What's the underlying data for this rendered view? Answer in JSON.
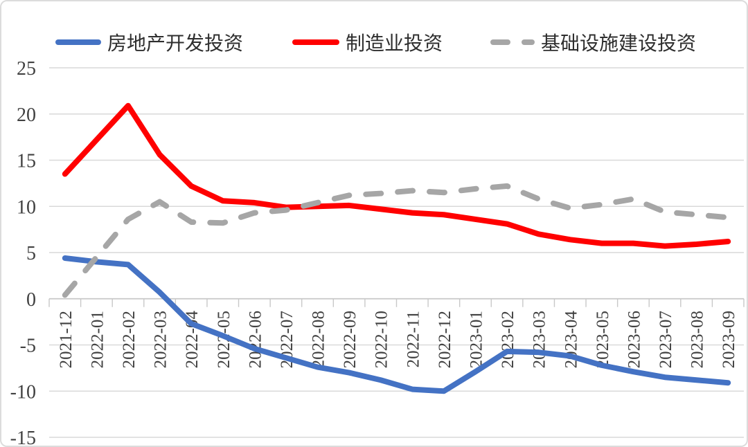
{
  "chart_data": {
    "type": "line",
    "title": "",
    "xlabel": "",
    "ylabel": "",
    "ylim": [
      -15,
      25
    ],
    "yticks": [
      25,
      20,
      15,
      10,
      5,
      0,
      -5,
      -10,
      -15
    ],
    "grid": "horizontal",
    "legend_position": "top",
    "colors": {
      "grid": "#d9d9d9",
      "axis": "#c8c8c8",
      "tick_label": "#404040",
      "legend_text": "#2e2e2e"
    },
    "categories": [
      "2021-12",
      "2022-01",
      "2022-02",
      "2022-03",
      "2022-04",
      "2022-05",
      "2022-06",
      "2022-07",
      "2022-08",
      "2022-09",
      "2022-10",
      "2022-11",
      "2022-12",
      "2023-01",
      "2023-02",
      "2023-03",
      "2023-04",
      "2023-05",
      "2023-06",
      "2023-07",
      "2023-08",
      "2023-09"
    ],
    "series": [
      {
        "name": "房地产开发投资",
        "color": "#4472C4",
        "dash": "solid",
        "values": [
          4.4,
          4.0,
          3.7,
          0.7,
          -2.7,
          -4.0,
          -5.4,
          -6.4,
          -7.4,
          -8.0,
          -8.8,
          -9.8,
          -10.0,
          -7.9,
          -5.7,
          -5.8,
          -6.2,
          -7.2,
          -7.9,
          -8.5,
          -8.8,
          -9.1
        ]
      },
      {
        "name": "制造业投资",
        "color": "#FF0000",
        "dash": "solid",
        "values": [
          13.5,
          17.2,
          20.9,
          15.6,
          12.2,
          10.6,
          10.4,
          9.9,
          10.0,
          10.1,
          9.7,
          9.3,
          9.1,
          8.6,
          8.1,
          7.0,
          6.4,
          6.0,
          6.0,
          5.7,
          5.9,
          6.2
        ]
      },
      {
        "name": "基础设施建设投资",
        "color": "#A6A6A6",
        "dash": "dashed",
        "values": [
          0.4,
          4.5,
          8.6,
          10.5,
          8.3,
          8.2,
          9.3,
          9.6,
          10.4,
          11.2,
          11.4,
          11.7,
          11.5,
          11.9,
          12.2,
          10.8,
          9.8,
          10.2,
          10.8,
          9.4,
          9.1,
          8.8
        ]
      }
    ]
  }
}
